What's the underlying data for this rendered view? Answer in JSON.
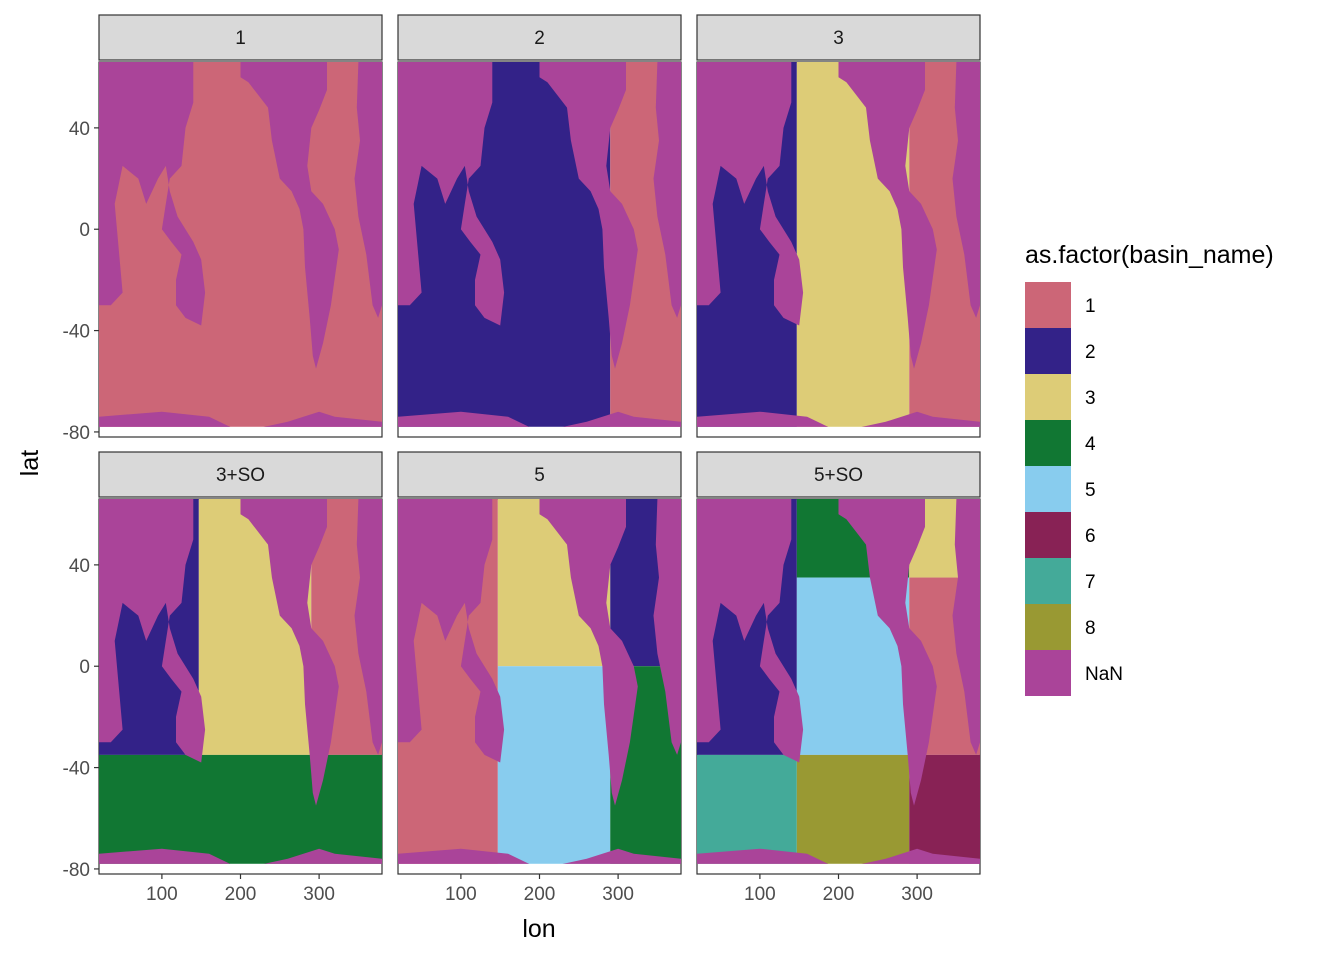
{
  "chart_data": {
    "type": "heatmap",
    "facet_labels": [
      "1",
      "2",
      "3",
      "3+SO",
      "5",
      "5+SO"
    ],
    "xlabel": "lon",
    "ylabel": "lat",
    "x_ticks": [
      100,
      200,
      300
    ],
    "y_ticks": [
      40,
      0,
      -40,
      -80
    ],
    "xlim": [
      20,
      380
    ],
    "ylim": [
      -82,
      66
    ],
    "grid": false,
    "legend": {
      "title": "as.factor(basin_name)",
      "position": "right",
      "entries": [
        {
          "label": "1",
          "color": "#CC6677"
        },
        {
          "label": "2",
          "color": "#332288"
        },
        {
          "label": "3",
          "color": "#DDCC77"
        },
        {
          "label": "4",
          "color": "#117733"
        },
        {
          "label": "5",
          "color": "#88CCEE"
        },
        {
          "label": "6",
          "color": "#882255"
        },
        {
          "label": "7",
          "color": "#44AA99"
        },
        {
          "label": "8",
          "color": "#999933"
        },
        {
          "label": "NaN",
          "color": "#AA4499"
        }
      ]
    },
    "panels": [
      {
        "facet": "1",
        "regions": [
          {
            "basin": "1",
            "lon": [
              20,
              380
            ],
            "lat": [
              -78,
              66
            ]
          }
        ]
      },
      {
        "facet": "2",
        "regions": [
          {
            "basin": "2",
            "lon": [
              20,
              290
            ],
            "lat": [
              -78,
              66
            ]
          },
          {
            "basin": "1",
            "lon": [
              290,
              380
            ],
            "lat": [
              -78,
              66
            ]
          }
        ]
      },
      {
        "facet": "3",
        "regions": [
          {
            "basin": "2",
            "lon": [
              20,
              147
            ],
            "lat": [
              -78,
              66
            ]
          },
          {
            "basin": "3",
            "lon": [
              147,
              290
            ],
            "lat": [
              -78,
              66
            ]
          },
          {
            "basin": "1",
            "lon": [
              290,
              380
            ],
            "lat": [
              -78,
              66
            ]
          }
        ]
      },
      {
        "facet": "3+SO",
        "regions": [
          {
            "basin": "2",
            "lon": [
              20,
              147
            ],
            "lat": [
              -35,
              66
            ]
          },
          {
            "basin": "3",
            "lon": [
              147,
              290
            ],
            "lat": [
              -35,
              66
            ]
          },
          {
            "basin": "1",
            "lon": [
              290,
              380
            ],
            "lat": [
              -35,
              66
            ]
          },
          {
            "basin": "4",
            "lon": [
              20,
              380
            ],
            "lat": [
              -78,
              -35
            ]
          }
        ]
      },
      {
        "facet": "5",
        "regions": [
          {
            "basin": "1",
            "lon": [
              20,
              147
            ],
            "lat": [
              -78,
              66
            ]
          },
          {
            "basin": "3",
            "lon": [
              147,
              290
            ],
            "lat": [
              0,
              66
            ]
          },
          {
            "basin": "5",
            "lon": [
              147,
              290
            ],
            "lat": [
              -78,
              0
            ]
          },
          {
            "basin": "2",
            "lon": [
              290,
              380
            ],
            "lat": [
              0,
              66
            ]
          },
          {
            "basin": "4",
            "lon": [
              290,
              380
            ],
            "lat": [
              -78,
              0
            ]
          }
        ]
      },
      {
        "facet": "5+SO",
        "regions": [
          {
            "basin": "2",
            "lon": [
              20,
              147
            ],
            "lat": [
              -35,
              66
            ]
          },
          {
            "basin": "4",
            "lon": [
              147,
              290
            ],
            "lat": [
              35,
              66
            ]
          },
          {
            "basin": "5",
            "lon": [
              147,
              290
            ],
            "lat": [
              -35,
              35
            ]
          },
          {
            "basin": "3",
            "lon": [
              290,
              380
            ],
            "lat": [
              35,
              66
            ]
          },
          {
            "basin": "1",
            "lon": [
              290,
              380
            ],
            "lat": [
              -35,
              35
            ]
          },
          {
            "basin": "7",
            "lon": [
              20,
              147
            ],
            "lat": [
              -78,
              -35
            ]
          },
          {
            "basin": "8",
            "lon": [
              147,
              290
            ],
            "lat": [
              -78,
              -35
            ]
          },
          {
            "basin": "6",
            "lon": [
              290,
              380
            ],
            "lat": [
              -78,
              -35
            ]
          }
        ]
      }
    ]
  }
}
